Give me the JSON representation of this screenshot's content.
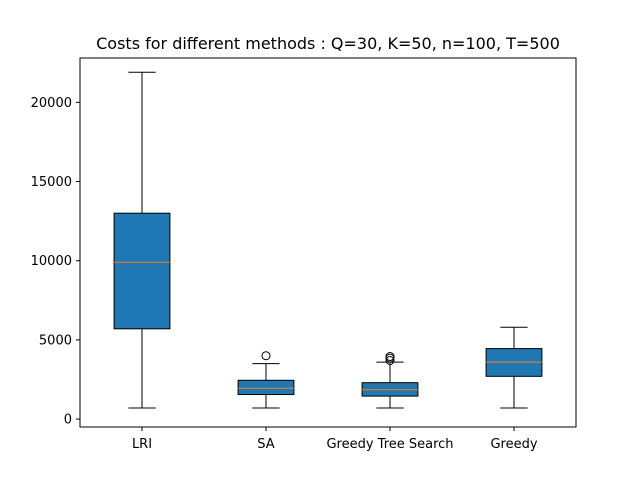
{
  "chart_data": {
    "type": "box",
    "title": "Costs for different methods : Q=30, K=50, n=100, T=500",
    "xlabel": "",
    "ylabel": "",
    "categories": [
      "LRI",
      "SA",
      "Greedy Tree Search",
      "Greedy"
    ],
    "ylim": [
      -500,
      22800
    ],
    "yticks": [
      0,
      5000,
      10000,
      15000,
      20000
    ],
    "box_color": "#1f77b4",
    "median_color": "#ff7f0e",
    "grid": false,
    "boxes": [
      {
        "category": "LRI",
        "whisker_low": 700,
        "q1": 5700,
        "median": 9900,
        "q3": 13000,
        "whisker_high": 21900,
        "outliers": []
      },
      {
        "category": "SA",
        "whisker_low": 700,
        "q1": 1550,
        "median": 1950,
        "q3": 2450,
        "whisker_high": 3500,
        "outliers": [
          4000
        ]
      },
      {
        "category": "Greedy Tree Search",
        "whisker_low": 700,
        "q1": 1450,
        "median": 1850,
        "q3": 2300,
        "whisker_high": 3600,
        "outliers": [
          3700,
          3850,
          3950
        ]
      },
      {
        "category": "Greedy",
        "whisker_low": 700,
        "q1": 2700,
        "median": 3600,
        "q3": 4450,
        "whisker_high": 5800,
        "outliers": []
      }
    ]
  }
}
